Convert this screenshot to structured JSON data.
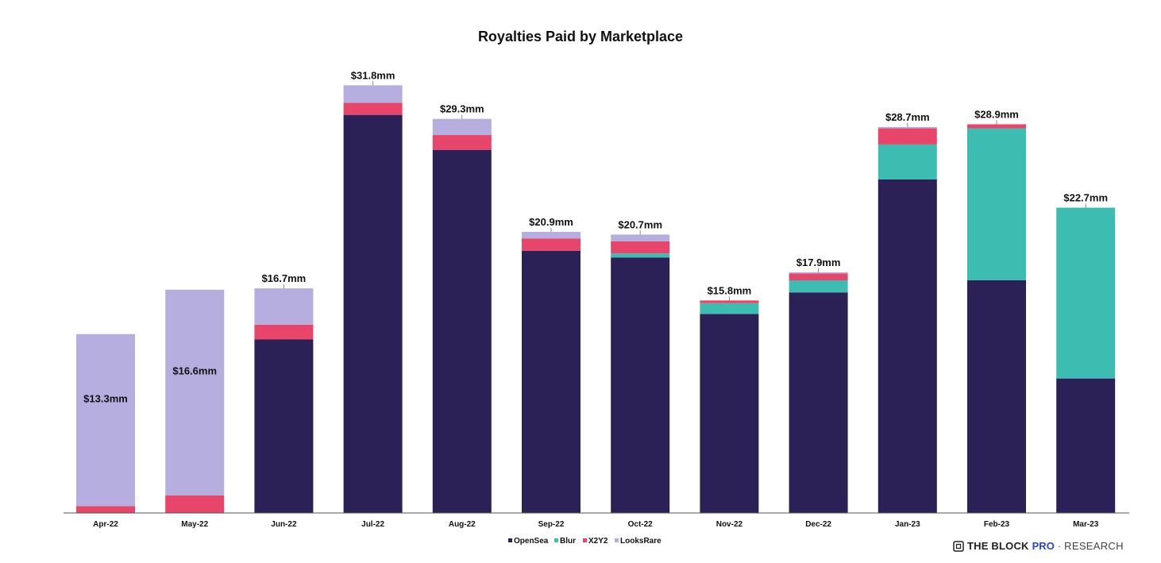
{
  "chart_data": {
    "type": "bar",
    "stacked": true,
    "title": "Royalties Paid by Marketplace",
    "unit": "$mm",
    "categories": [
      "Apr-22",
      "May-22",
      "Jun-22",
      "Jul-22",
      "Aug-22",
      "Sep-22",
      "Oct-22",
      "Nov-22",
      "Dec-22",
      "Jan-23",
      "Feb-23",
      "Mar-23"
    ],
    "series": [
      {
        "name": "OpenSea",
        "color": "#2b2157",
        "values": [
          0,
          0,
          12.9,
          29.6,
          27.0,
          19.5,
          19.0,
          14.8,
          16.4,
          24.8,
          17.3,
          10.0
        ]
      },
      {
        "name": "Blur",
        "color": "#3dbdb2",
        "values": [
          0,
          0,
          0,
          0,
          0,
          0,
          0.3,
          0.8,
          0.9,
          2.6,
          11.3,
          12.7
        ]
      },
      {
        "name": "X2Y2",
        "color": "#e8456b",
        "values": [
          0.5,
          1.3,
          1.1,
          0.9,
          1.1,
          0.9,
          0.9,
          0.2,
          0.5,
          1.2,
          0.3,
          0
        ]
      },
      {
        "name": "LooksRare",
        "color": "#b7aee0",
        "values": [
          12.8,
          15.3,
          2.7,
          1.3,
          1.2,
          0.5,
          0.5,
          0.0,
          0.1,
          0.1,
          0.0,
          0
        ]
      }
    ],
    "totals": [
      "$13.3mm",
      "$16.6mm",
      "$16.7mm",
      "$31.8mm",
      "$29.3mm",
      "$20.9mm",
      "$20.7mm",
      "$15.8mm",
      "$17.9mm",
      "$28.7mm",
      "$28.9mm",
      "$22.7mm"
    ],
    "ylim": [
      0,
      32
    ],
    "legend_position": "bottom-center",
    "grid": false
  },
  "footer": {
    "brand_name": "THE BLOCK",
    "brand_pro": "PRO",
    "brand_sep": "·",
    "brand_research": "RESEARCH",
    "brand_icon": "block-cube-icon"
  }
}
